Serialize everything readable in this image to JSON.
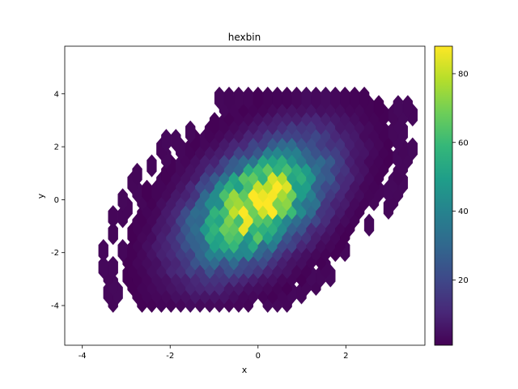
{
  "chart_data": {
    "type": "hexbin",
    "title": "hexbin",
    "xlabel": "x",
    "ylabel": "y",
    "xlim": [
      -4.4,
      3.8
    ],
    "ylim": [
      -5.5,
      5.8
    ],
    "x_ticks": [
      -4,
      -2,
      0,
      2
    ],
    "y_ticks": [
      -4,
      -2,
      0,
      2,
      4
    ],
    "x_tick_labels": [
      "-4",
      "-2",
      "0",
      "2"
    ],
    "y_tick_labels": [
      "-4",
      "-2",
      "0",
      "2",
      "4"
    ],
    "colorbar": {
      "colormap": "viridis",
      "range": [
        1,
        88
      ],
      "ticks": [
        20,
        40,
        60,
        80
      ],
      "tick_labels": [
        "20",
        "40",
        "60",
        "80"
      ]
    },
    "distribution": {
      "kind": "bivariate-normal",
      "x_mean": 0.0,
      "x_std": 1.0,
      "y_mean": 0.0,
      "y_std": 1.5,
      "correlation": 0.5,
      "peak_count": 88
    },
    "hexagon_grid": {
      "x_step": 0.22,
      "y_step": 0.64,
      "mincnt": 1
    },
    "grid": false,
    "colors": {
      "viridis": [
        "#440154",
        "#482878",
        "#3e4989",
        "#31688e",
        "#26828e",
        "#1f9e89",
        "#35b779",
        "#6ece58",
        "#b5de2b",
        "#fde725"
      ]
    }
  }
}
